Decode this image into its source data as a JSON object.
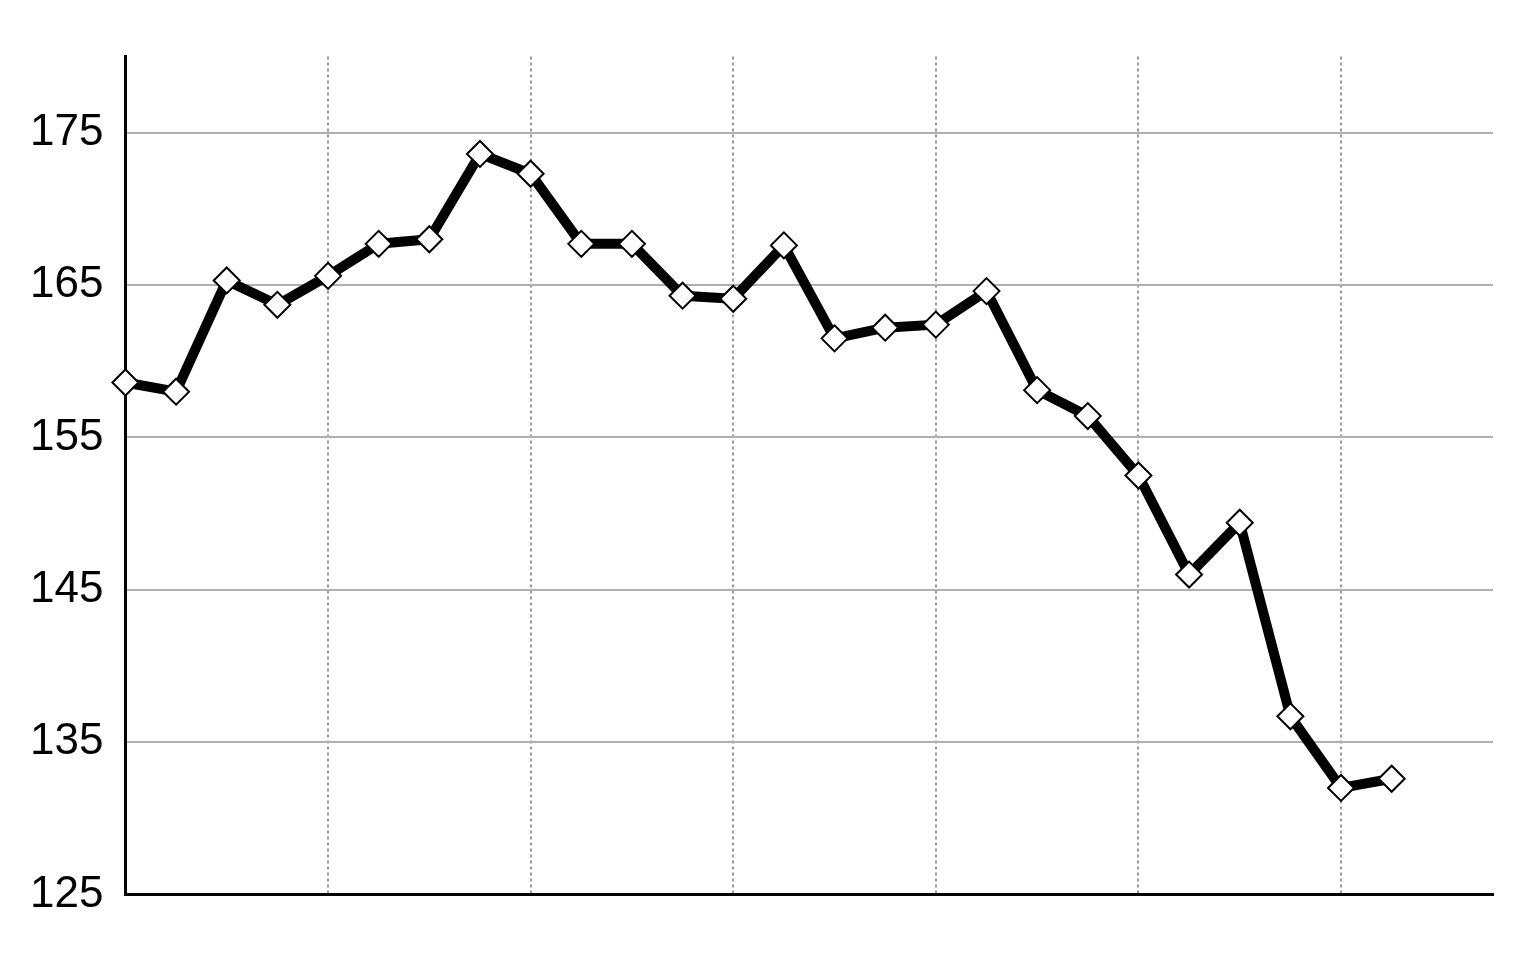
{
  "chart_data": {
    "type": "line",
    "categories": [
      null,
      null,
      null,
      null,
      null,
      null,
      null,
      null,
      null,
      null,
      null,
      null,
      null,
      null,
      null,
      null,
      null,
      null,
      null,
      null,
      null,
      null,
      null,
      null,
      null,
      null,
      null,
      null
    ],
    "series": [
      {
        "color": "#000000",
        "values": [
          158.6,
          158.0,
          165.3,
          163.7,
          165.6,
          167.7,
          168.0,
          173.6,
          172.3,
          167.7,
          167.7,
          164.3,
          164.1,
          167.6,
          161.5,
          162.2,
          162.4,
          164.6,
          158.1,
          156.4,
          152.5,
          146.0,
          149.4,
          136.7,
          132.0,
          132.6,
          null,
          null
        ]
      }
    ],
    "ylim": [
      125,
      180
    ],
    "yticks": [
      125,
      135,
      145,
      155,
      165,
      175
    ],
    "grid": true,
    "legend": false,
    "marker": "diamond",
    "line_style": "solid"
  }
}
